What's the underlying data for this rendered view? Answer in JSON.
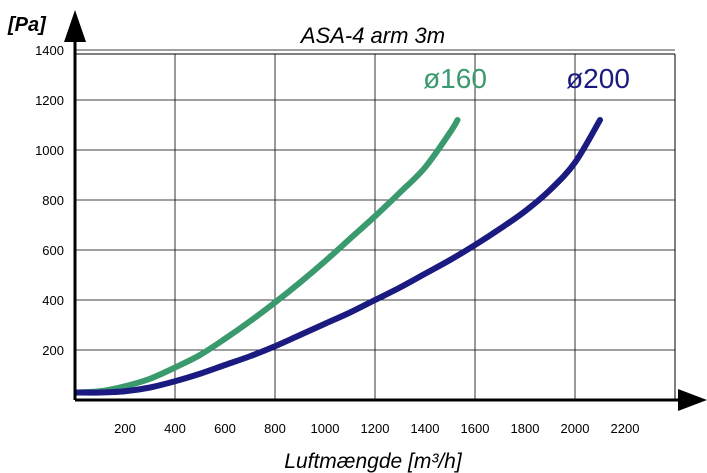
{
  "chart_data": {
    "type": "line",
    "title": "ASA-4 arm 3m",
    "ylabel": "[Pa]",
    "xlabel": "Luftmængde [m³/h]",
    "xlim": [
      0,
      2400
    ],
    "ylim": [
      0,
      1400
    ],
    "x_ticks": [
      200,
      400,
      600,
      800,
      1000,
      1200,
      1400,
      1600,
      1800,
      2000,
      2200
    ],
    "y_ticks": [
      200,
      400,
      600,
      800,
      1000,
      1200,
      1400
    ],
    "x_tick_labels": [
      "200",
      "400",
      "600",
      "800",
      "1000",
      "1200",
      "1400",
      "1600",
      "1800",
      "2000",
      "2200"
    ],
    "y_tick_labels": [
      "200",
      "400",
      "600",
      "800",
      "1000",
      "1200",
      "1400"
    ],
    "grid": true,
    "legend": "none",
    "series": [
      {
        "name": "ø160",
        "color": "#3a9a6e",
        "x": [
          0,
          100,
          200,
          300,
          400,
          500,
          600,
          700,
          800,
          900,
          1000,
          1100,
          1200,
          1300,
          1400,
          1500,
          1530
        ],
        "y": [
          30,
          35,
          55,
          85,
          130,
          180,
          245,
          315,
          390,
          470,
          555,
          645,
          735,
          830,
          930,
          1070,
          1120
        ]
      },
      {
        "name": "ø200",
        "color": "#1a1a80",
        "x": [
          0,
          100,
          200,
          300,
          400,
          500,
          600,
          700,
          800,
          900,
          1000,
          1100,
          1200,
          1300,
          1400,
          1500,
          1600,
          1700,
          1800,
          1900,
          2000,
          2100
        ],
        "y": [
          30,
          30,
          35,
          50,
          75,
          105,
          140,
          175,
          215,
          260,
          305,
          350,
          400,
          450,
          505,
          560,
          620,
          685,
          755,
          840,
          950,
          1120
        ]
      }
    ]
  }
}
